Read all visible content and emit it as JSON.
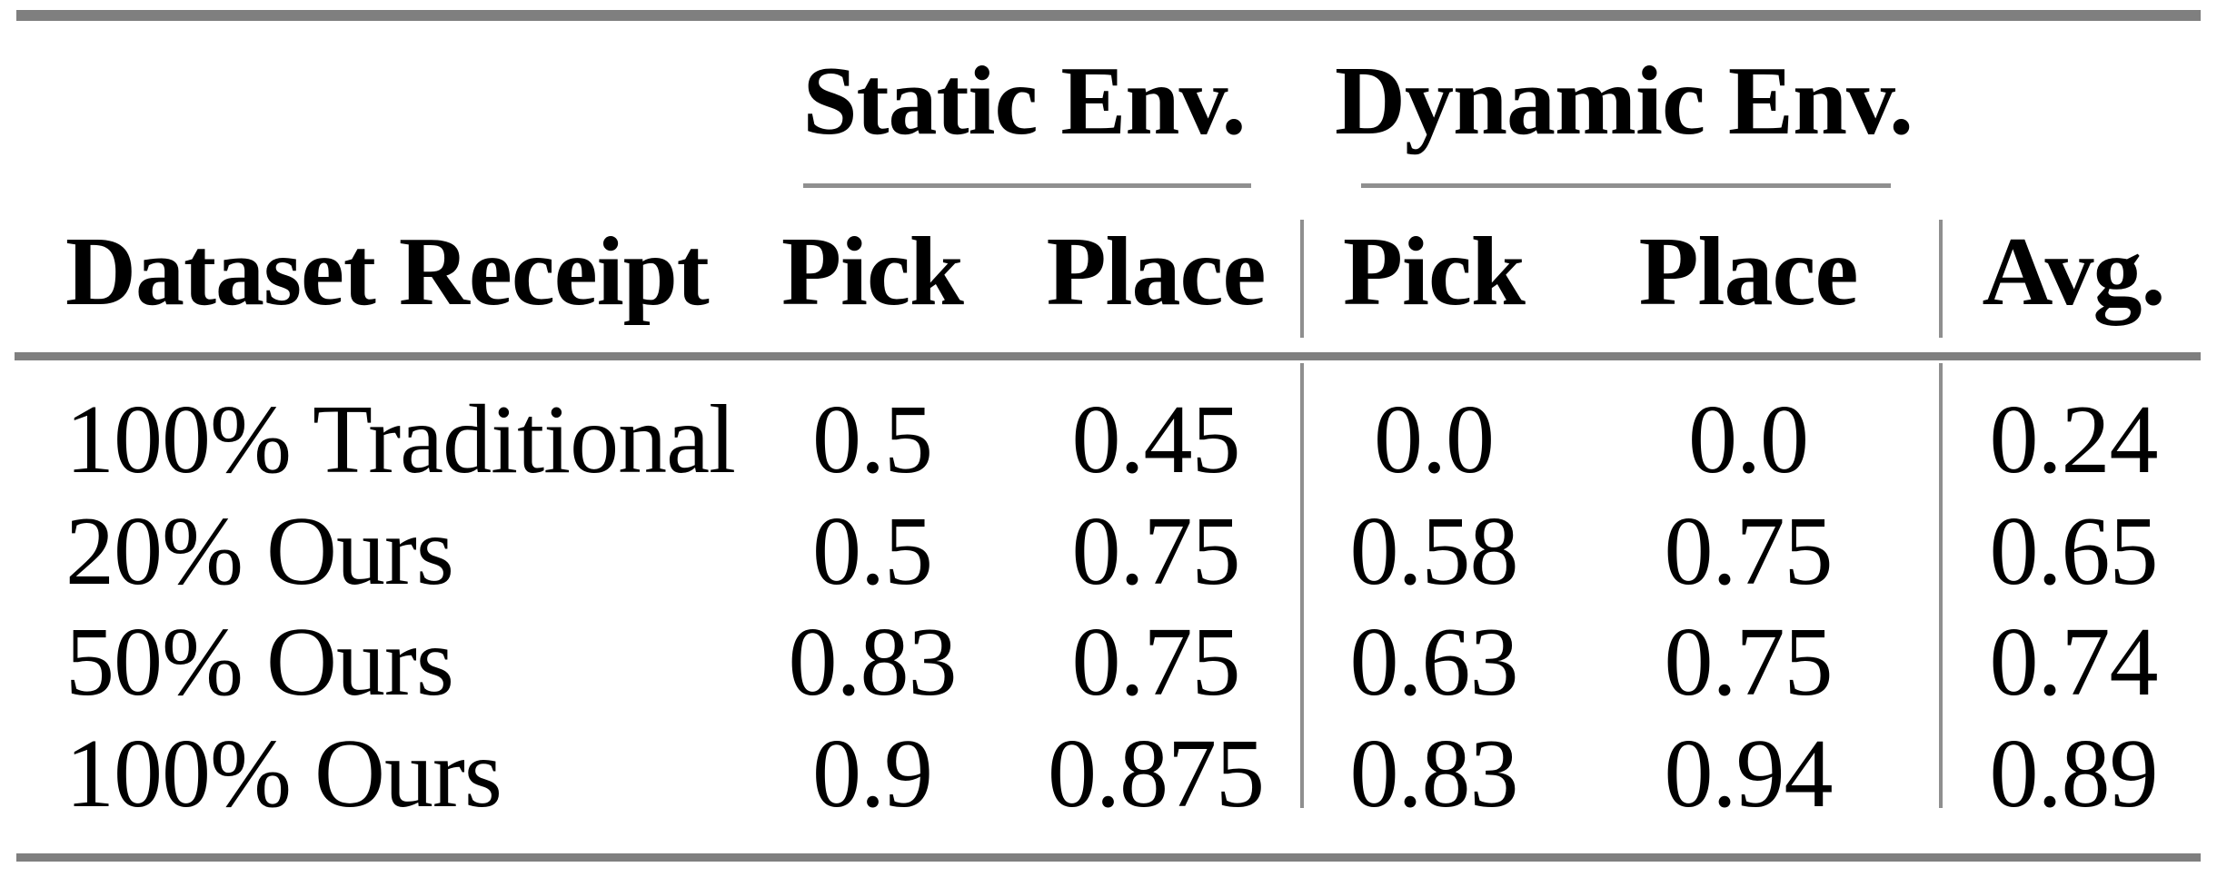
{
  "table": {
    "group_headers": {
      "static": "Static Env.",
      "dynamic": "Dynamic Env."
    },
    "column_headers": {
      "dataset": "Dataset Receipt",
      "static_pick": "Pick",
      "static_place": "Place",
      "dynamic_pick": "Pick",
      "dynamic_place": "Place",
      "avg": "Avg."
    },
    "rows": [
      {
        "dataset": "100% Traditional",
        "static_pick": "0.5",
        "static_place": "0.45",
        "dynamic_pick": "0.0",
        "dynamic_place": "0.0",
        "avg": "0.24"
      },
      {
        "dataset": "20% Ours",
        "static_pick": "0.5",
        "static_place": "0.75",
        "dynamic_pick": "0.58",
        "dynamic_place": "0.75",
        "avg": "0.65"
      },
      {
        "dataset": "50% Ours",
        "static_pick": "0.83",
        "static_place": "0.75",
        "dynamic_pick": "0.63",
        "dynamic_place": "0.75",
        "avg": "0.74"
      },
      {
        "dataset": "100% Ours",
        "static_pick": "0.9",
        "static_place": "0.875",
        "dynamic_pick": "0.83",
        "dynamic_place": "0.94",
        "avg": "0.89"
      }
    ],
    "colors": {
      "rule_thick": "#7f7f7f",
      "rule_thin": "#8f8f8f",
      "text": "#000000",
      "background": "#ffffff"
    }
  }
}
